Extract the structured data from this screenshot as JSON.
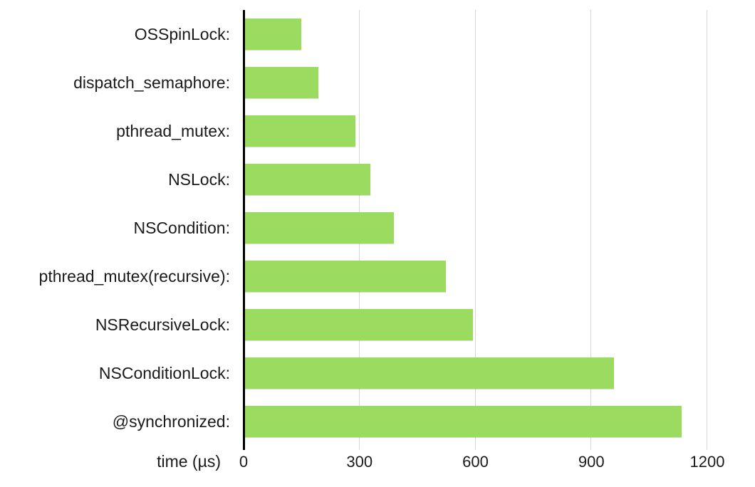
{
  "chart_data": {
    "type": "bar",
    "orientation": "horizontal",
    "title": "",
    "categories": [
      "OSSpinLock:",
      "dispatch_semaphore:",
      "pthread_mutex:",
      "NSLock:",
      "NSCondition:",
      "pthread_mutex(recursive):",
      "NSRecursiveLock:",
      "NSConditionLock:",
      "@synchronized:"
    ],
    "values": [
      145,
      190,
      285,
      325,
      385,
      520,
      590,
      955,
      1130
    ],
    "xlabel": "time (µs)",
    "x_ticks": [
      0,
      300,
      600,
      900,
      1200
    ],
    "xlim": [
      0,
      1200
    ],
    "grid": "vertical-only",
    "legend": "none",
    "colors": {
      "bar": "#9bdb5f",
      "axis": "#000000",
      "gridline": "#d6d6d6",
      "text": "#1a1a1a",
      "background": "#ffffff"
    }
  }
}
